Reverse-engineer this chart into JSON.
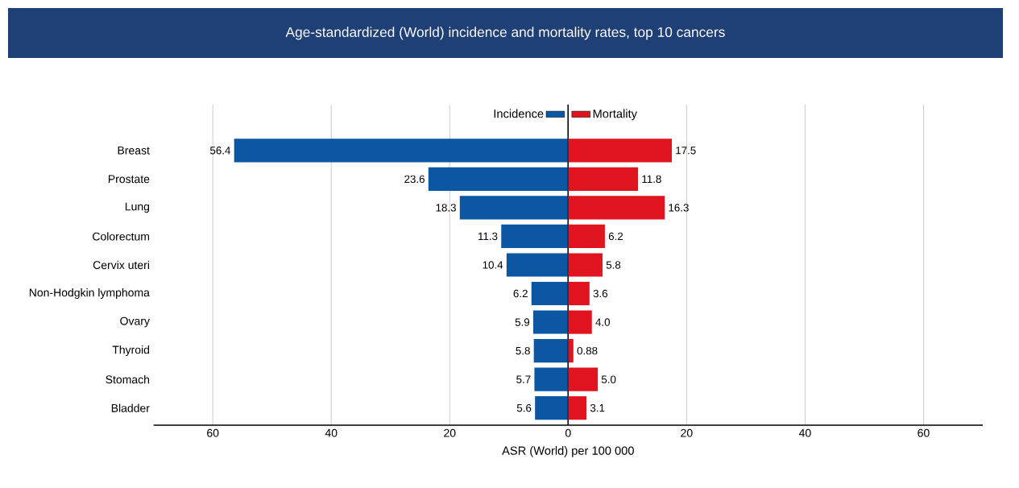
{
  "chart_data": [
    {
      "type": "bar",
      "orientation": "horizontal",
      "title": "Age-standardized (World) incidence and mortality rates, top 10 cancers",
      "xlabel": "ASR (World) per 100 000",
      "categories": [
        "Breast",
        "Prostate",
        "Lung",
        "Colorectum",
        "Cervix uteri",
        "Non-Hodgkin lymphoma",
        "Ovary",
        "Thyroid",
        "Stomach",
        "Bladder"
      ],
      "series": [
        {
          "name": "Incidence",
          "color": "#0b57a4",
          "values": [
            56.4,
            23.6,
            18.3,
            11.3,
            10.4,
            6.2,
            5.9,
            5.8,
            5.7,
            5.6
          ]
        }
      ],
      "data_labels": true,
      "xlim": [
        70,
        0
      ],
      "xticks": [
        60,
        40,
        20,
        0
      ],
      "grid": "x",
      "legend": "top right"
    },
    {
      "type": "bar",
      "orientation": "horizontal",
      "categories": [
        null,
        null,
        null,
        null,
        null,
        null,
        null,
        null,
        null,
        null
      ],
      "series": [
        {
          "name": "Mortality",
          "color": "#e0141e",
          "values": [
            17.5,
            11.8,
            16.3,
            6.2,
            5.8,
            3.6,
            4.0,
            0.88,
            5.0,
            3.1
          ],
          "value_labels": [
            "17.5",
            "11.8",
            "16.3",
            "6.2",
            "5.8",
            "3.6",
            "4.0",
            "0.88",
            "5.0",
            "3.1"
          ]
        }
      ],
      "xlim": [
        0,
        70
      ],
      "xticks": [
        20,
        40,
        60
      ],
      "grid": "x",
      "tick_labels": "x",
      "legend": "top left"
    }
  ]
}
